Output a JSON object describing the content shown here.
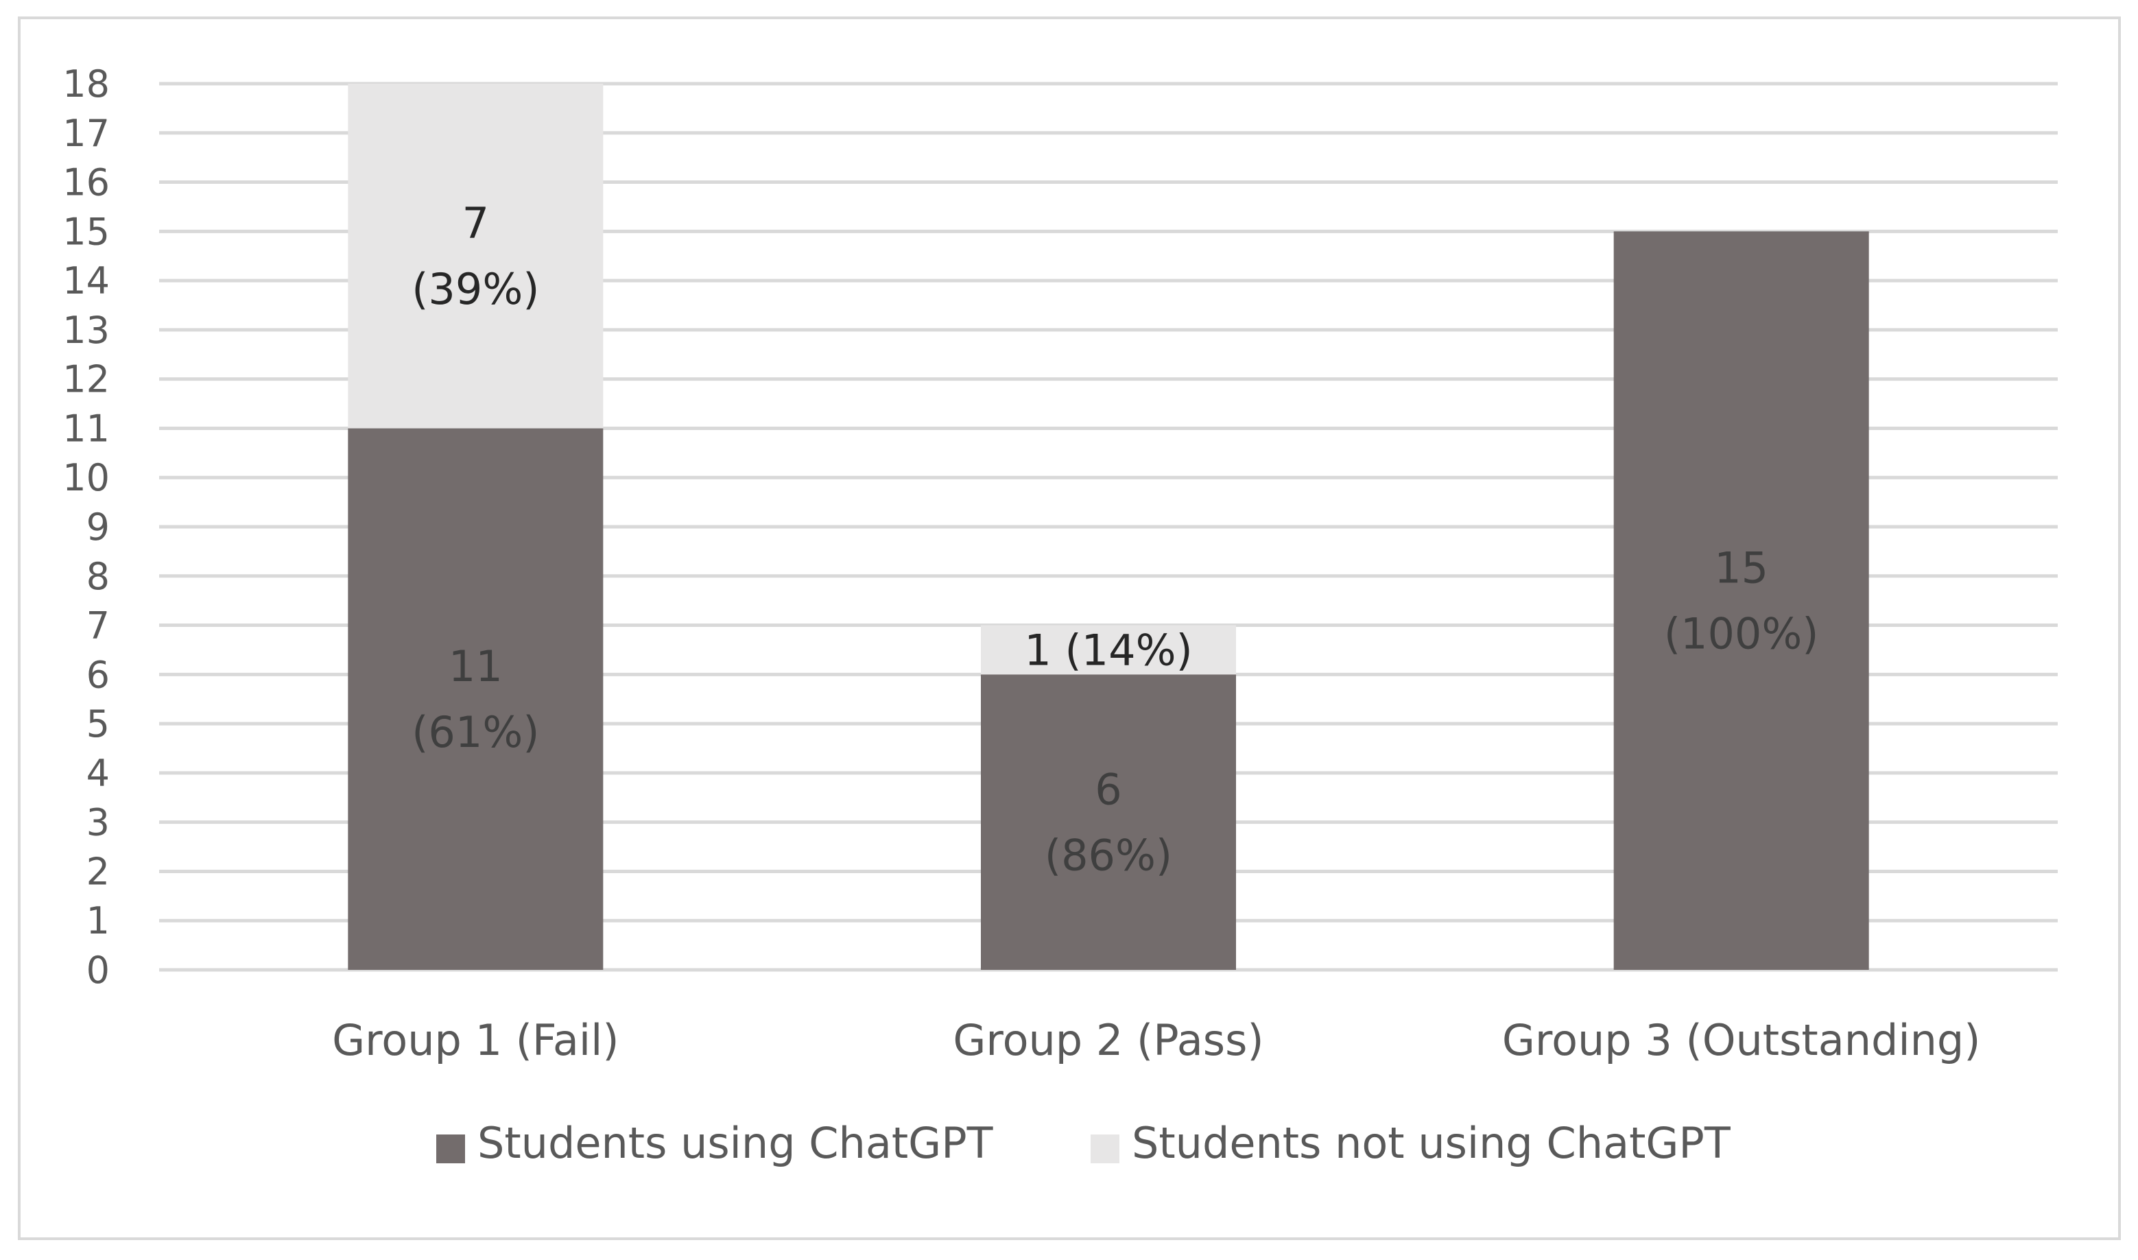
{
  "chart_data": {
    "type": "bar",
    "stacked": true,
    "categories": [
      "Group 1 (Fail)",
      "Group 2 (Pass)",
      "Group 3 (Outstanding)"
    ],
    "series": [
      {
        "name": "Students using ChatGPT",
        "values": [
          11,
          6,
          15
        ],
        "labels": [
          [
            "11",
            "(61%)"
          ],
          [
            "6",
            "(86%)"
          ],
          [
            "15",
            "(100%)"
          ]
        ],
        "color": "#736c6c",
        "label_color": "#3f3f3f"
      },
      {
        "name": "Students not using ChatGPT",
        "values": [
          7,
          1,
          0
        ],
        "labels": [
          [
            "7",
            "(39%)"
          ],
          [
            "1  (14%)"
          ],
          []
        ],
        "color": "#e7e6e6",
        "label_color": "#262626"
      }
    ],
    "title": "",
    "xlabel": "",
    "ylabel": "",
    "ylim": [
      0,
      18
    ],
    "yticks": [
      0,
      1,
      2,
      3,
      4,
      5,
      6,
      7,
      8,
      9,
      10,
      11,
      12,
      13,
      14,
      15,
      16,
      17,
      18
    ],
    "grid": true,
    "grid_color": "#d9d9d9",
    "legend": "bottom"
  }
}
